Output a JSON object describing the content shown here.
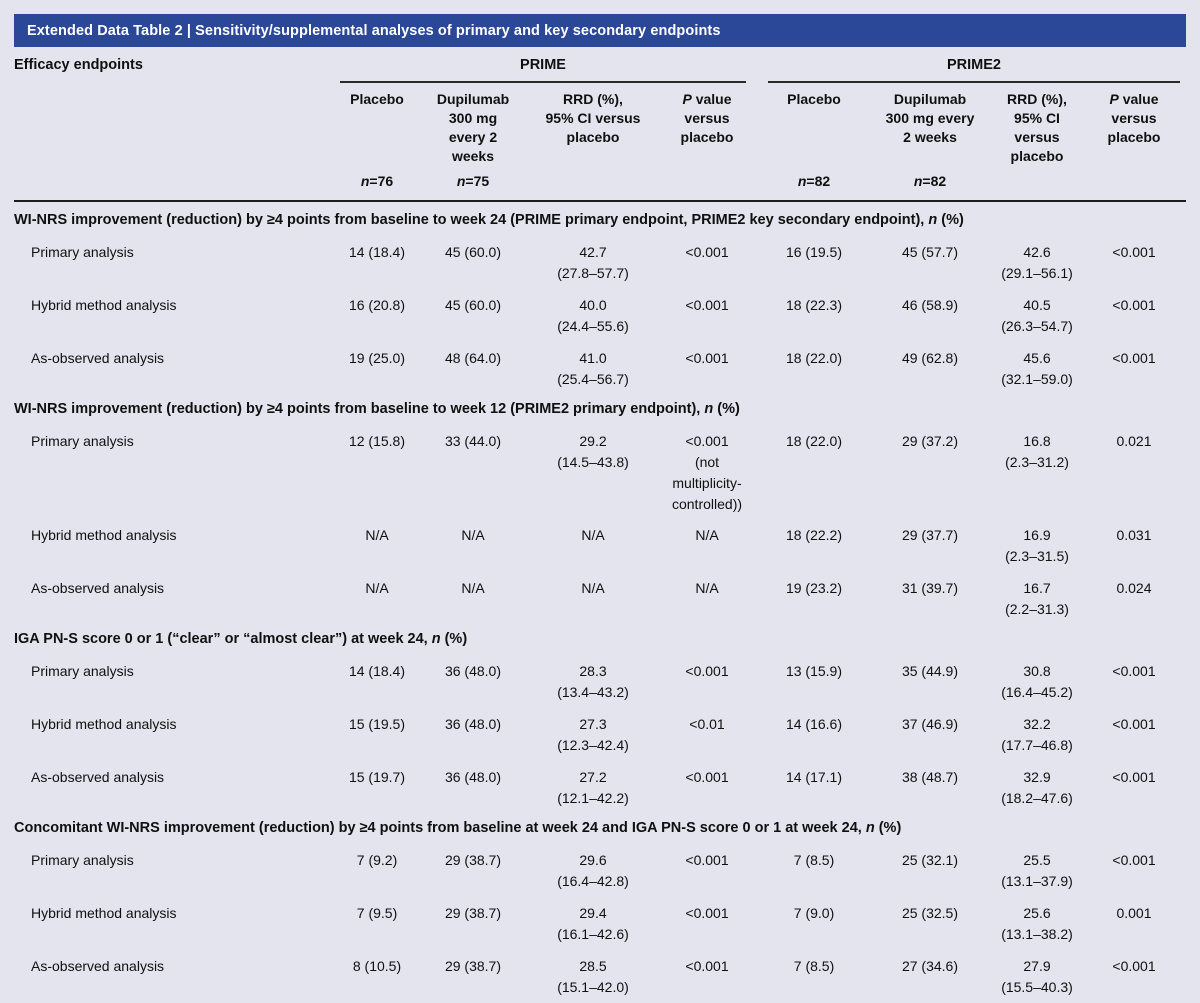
{
  "title": "Extended Data Table 2 | Sensitivity/supplemental analyses of primary and key secondary endpoints",
  "colors": {
    "title_bar": "#2b4798",
    "background": "#e3e4ed",
    "rule": "#1c1c1c"
  },
  "header": {
    "row_label": "Efficacy endpoints",
    "n_prefix": "n",
    "groups": [
      {
        "name": "PRIME",
        "columns": [
          {
            "label": "Placebo",
            "n": "=76"
          },
          {
            "label": "Dupilumab\n300 mg\nevery 2\nweeks",
            "n": "=75"
          },
          {
            "label": "RRD (%),\n95% CI versus\nplacebo",
            "n": ""
          },
          {
            "label_italic": "P",
            "label": " value\nversus\nplacebo",
            "n": ""
          }
        ]
      },
      {
        "name": "PRIME2",
        "columns": [
          {
            "label": "Placebo",
            "n": "=82"
          },
          {
            "label": "Dupilumab\n300 mg every\n2 weeks",
            "n": "=82"
          },
          {
            "label": "RRD (%),\n95% CI\nversus\nplacebo",
            "n": ""
          },
          {
            "label_italic": "P",
            "label": " value\nversus\nplacebo",
            "n": ""
          }
        ]
      }
    ]
  },
  "sections": [
    {
      "title_pre": "WI-NRS improvement (reduction) by ≥4 points from baseline to week 24 (PRIME primary endpoint, PRIME2 key secondary endpoint), ",
      "title_n": "n",
      "title_post": " (%)",
      "rows": [
        {
          "label": "Primary analysis",
          "cells": [
            "14 (18.4)",
            "45 (60.0)",
            "42.7\n(27.8–57.7)",
            "<0.001",
            "16 (19.5)",
            "45 (57.7)",
            "42.6\n(29.1–56.1)",
            "<0.001"
          ]
        },
        {
          "label": "Hybrid method analysis",
          "cells": [
            "16 (20.8)",
            "45 (60.0)",
            "40.0\n(24.4–55.6)",
            "<0.001",
            "18 (22.3)",
            "46 (58.9)",
            "40.5\n(26.3–54.7)",
            "<0.001"
          ]
        },
        {
          "label": "As-observed analysis",
          "cells": [
            "19 (25.0)",
            "48 (64.0)",
            "41.0\n(25.4–56.7)",
            "<0.001",
            "18 (22.0)",
            "49 (62.8)",
            "45.6\n(32.1–59.0)",
            "<0.001"
          ]
        }
      ]
    },
    {
      "title_pre": "WI-NRS improvement (reduction) by ≥4 points from baseline to week 12 (PRIME2 primary endpoint), ",
      "title_n": "n",
      "title_post": " (%)",
      "rows": [
        {
          "label": "Primary analysis",
          "cells": [
            "12 (15.8)",
            "33 (44.0)",
            "29.2\n(14.5–43.8)",
            "<0.001\n(not\nmultiplicity-\ncontrolled))",
            "18 (22.0)",
            "29 (37.2)",
            "16.8\n(2.3–31.2)",
            "0.021"
          ]
        },
        {
          "label": "Hybrid method analysis",
          "cells": [
            "N/A",
            "N/A",
            "N/A",
            "N/A",
            "18 (22.2)",
            "29 (37.7)",
            "16.9\n(2.3–31.5)",
            "0.031"
          ]
        },
        {
          "label": "As-observed analysis",
          "cells": [
            "N/A",
            "N/A",
            "N/A",
            "N/A",
            "19 (23.2)",
            "31 (39.7)",
            "16.7\n(2.2–31.3)",
            "0.024"
          ]
        }
      ]
    },
    {
      "title_pre": "IGA PN-S score 0 or 1 (“clear” or “almost clear”) at week 24, ",
      "title_n": "n",
      "title_post": " (%)",
      "rows": [
        {
          "label": "Primary analysis",
          "cells": [
            "14 (18.4)",
            "36 (48.0)",
            "28.3\n(13.4–43.2)",
            "<0.001",
            "13 (15.9)",
            "35 (44.9)",
            "30.8\n(16.4–45.2)",
            "<0.001"
          ]
        },
        {
          "label": "Hybrid method analysis",
          "cells": [
            "15 (19.5)",
            "36 (48.0)",
            "27.3\n(12.3–42.4)",
            "<0.01",
            "14 (16.6)",
            "37 (46.9)",
            "32.2\n(17.7–46.8)",
            "<0.001"
          ]
        },
        {
          "label": "As-observed analysis",
          "cells": [
            "15 (19.7)",
            "36 (48.0)",
            "27.2\n(12.1–42.2)",
            "<0.001",
            "14 (17.1)",
            "38 (48.7)",
            "32.9\n(18.2–47.6)",
            "<0.001"
          ]
        }
      ]
    },
    {
      "title_pre": "Concomitant WI-NRS improvement (reduction) by ≥4 points from baseline at week 24 and IGA PN-S score 0 or 1 at week 24, ",
      "title_n": "n",
      "title_post": " (%)",
      "rows": [
        {
          "label": "Primary analysis",
          "cells": [
            "7 (9.2)",
            "29 (38.7)",
            "29.6\n(16.4–42.8)",
            "<0.001",
            "7 (8.5)",
            "25 (32.1)",
            "25.5\n(13.1–37.9)",
            "<0.001"
          ]
        },
        {
          "label": "Hybrid method analysis",
          "cells": [
            "7 (9.5)",
            "29 (38.7)",
            "29.4\n(16.1–42.6)",
            "<0.001",
            "7 (9.0)",
            "25 (32.5)",
            "25.6\n(13.1–38.2)",
            "0.001"
          ]
        },
        {
          "label": "As-observed analysis",
          "cells": [
            "8 (10.5)",
            "29 (38.7)",
            "28.5\n(15.1–42.0)",
            "<0.001",
            "7 (8.5)",
            "27 (34.6)",
            "27.9\n(15.5–40.3)",
            "<0.001"
          ]
        }
      ]
    }
  ]
}
